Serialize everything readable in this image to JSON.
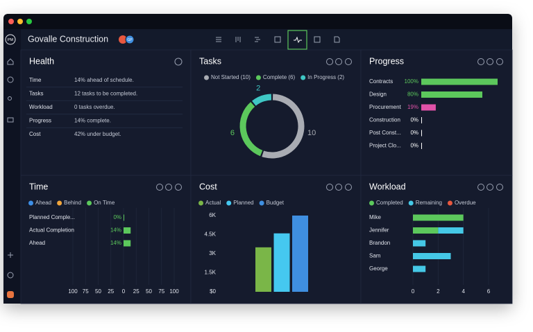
{
  "window": {
    "app_logo": "PM",
    "project": "Govalle Construction",
    "avatar": "GP"
  },
  "health": {
    "title": "Health",
    "rows": [
      [
        "Time",
        "14% ahead of schedule."
      ],
      [
        "Tasks",
        "12 tasks to be completed."
      ],
      [
        "Workload",
        "0 tasks overdue."
      ],
      [
        "Progress",
        "14% complete."
      ],
      [
        "Cost",
        "42% under budget."
      ]
    ]
  },
  "chart_data": [
    {
      "type": "donut",
      "title": "Tasks",
      "categories": [
        "Not Started (10)",
        "Complete (6)",
        "In Progress (2)"
      ],
      "values": [
        10,
        6,
        2
      ],
      "colors": [
        "#a9acb3",
        "#5cc85c",
        "#3fc7c4"
      ]
    },
    {
      "type": "hbar",
      "title": "Progress",
      "categories": [
        "Contracts",
        "Design",
        "Procurement",
        "Construction",
        "Post Const...",
        "Project Clo..."
      ],
      "values": [
        100,
        80,
        19,
        0,
        0,
        0
      ],
      "value_labels": [
        "100%",
        "80%",
        "19%",
        "0%",
        "0%",
        "0%"
      ],
      "colors": [
        "#5cc85c",
        "#5cc85c",
        "#e052a8",
        "#ffffff",
        "#ffffff",
        "#ffffff"
      ],
      "xlim": [
        0,
        100
      ]
    },
    {
      "type": "diverging-bar",
      "title": "Time",
      "legend": [
        {
          "name": "Ahead",
          "color": "#3d8ee6"
        },
        {
          "name": "Behind",
          "color": "#f0a53c"
        },
        {
          "name": "On Time",
          "color": "#5cc85c"
        }
      ],
      "categories": [
        "Planned Comple...",
        "Actual Completion",
        "Ahead"
      ],
      "values": [
        0,
        14,
        14
      ],
      "value_labels": [
        "0%",
        "14%",
        "14%"
      ],
      "color": "#5cc85c",
      "xlim": [
        -100,
        100
      ],
      "xticks": [
        {
          "value": -100,
          "label": "100"
        },
        {
          "value": -75,
          "label": "75"
        },
        {
          "value": -50,
          "label": "50"
        },
        {
          "value": -25,
          "label": "25"
        },
        0,
        25,
        50,
        75,
        100
      ],
      "grid": true
    },
    {
      "type": "bar",
      "title": "Cost",
      "series": [
        {
          "name": "Actual",
          "color": "#7ab648",
          "values": [
            3500
          ]
        },
        {
          "name": "Planned",
          "color": "#45c8f0",
          "values": [
            4600
          ]
        },
        {
          "name": "Budget",
          "color": "#3f8fe0",
          "values": [
            6000
          ]
        }
      ],
      "ylim": [
        0,
        6000
      ],
      "yticks": [
        {
          "value": 0,
          "label": "$0"
        },
        {
          "value": 1500,
          "label": "1.5K"
        },
        {
          "value": 3000,
          "label": "3K"
        },
        {
          "value": 4500,
          "label": "4.5K"
        },
        {
          "value": 6000,
          "label": "6K"
        }
      ]
    },
    {
      "type": "stacked-hbar",
      "title": "Workload",
      "categories": [
        "Mike",
        "Jennifer",
        "Brandon",
        "Sam",
        "George"
      ],
      "series": [
        {
          "name": "Completed",
          "color": "#5cc85c",
          "values": [
            4,
            2,
            0,
            0,
            0
          ]
        },
        {
          "name": "Remaining",
          "color": "#45c8e6",
          "values": [
            0,
            2,
            1,
            3,
            1
          ]
        },
        {
          "name": "Overdue",
          "color": "#e8583f",
          "values": [
            0,
            0,
            0,
            0,
            0
          ]
        }
      ],
      "xlim": [
        0,
        6
      ],
      "xticks": [
        0,
        2,
        4,
        6
      ],
      "grid": true
    }
  ]
}
